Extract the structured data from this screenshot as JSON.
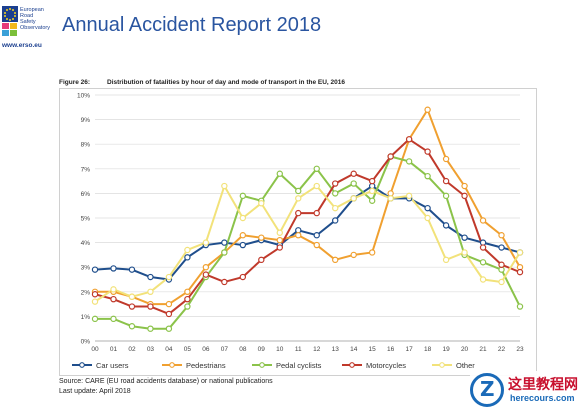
{
  "header": {
    "logo_lines": [
      "European",
      "Road",
      "Safety",
      "Observatory"
    ],
    "logo_url": "www.erso.eu",
    "title": "Annual Accident Report 2018"
  },
  "figure": {
    "label": "Figure 26:",
    "title": "Distribution of fatalities by hour of day and mode of transport in the EU, 2016"
  },
  "footer": {
    "source": "Source: CARE (EU road accidents database) or national publications",
    "last_update": "Last update: April 2018"
  },
  "watermark": {
    "logo_letter": "Z",
    "site_name": "这里教程网",
    "url": "herecours.com"
  },
  "chart_data": {
    "type": "line",
    "categories": [
      "00",
      "01",
      "02",
      "03",
      "04",
      "05",
      "06",
      "07",
      "08",
      "09",
      "10",
      "11",
      "12",
      "13",
      "14",
      "15",
      "16",
      "17",
      "18",
      "19",
      "20",
      "21",
      "22",
      "23"
    ],
    "ylim": [
      0,
      10
    ],
    "yticks": [
      "0%",
      "1%",
      "2%",
      "3%",
      "4%",
      "5%",
      "6%",
      "7%",
      "8%",
      "9%",
      "10%"
    ],
    "grid": true,
    "legend_position": "bottom",
    "series": [
      {
        "name": "Car users",
        "color": "#1f4e8c",
        "values": [
          2.9,
          2.95,
          2.9,
          2.6,
          2.5,
          3.4,
          3.9,
          4.0,
          3.9,
          4.1,
          3.9,
          4.5,
          4.3,
          4.9,
          5.8,
          6.3,
          5.8,
          5.8,
          5.4,
          4.7,
          4.2,
          4.0,
          3.8,
          3.6
        ]
      },
      {
        "name": "Pedestrians",
        "color": "#f0a030",
        "values": [
          2.0,
          2.0,
          1.8,
          1.5,
          1.5,
          2.0,
          3.0,
          3.6,
          4.3,
          4.2,
          4.1,
          4.3,
          3.9,
          3.3,
          3.5,
          3.6,
          6.0,
          8.2,
          9.4,
          7.4,
          6.3,
          4.9,
          4.3,
          3.0
        ]
      },
      {
        "name": "Pedal cyclists",
        "color": "#8bc34a",
        "values": [
          0.9,
          0.9,
          0.6,
          0.5,
          0.5,
          1.4,
          2.6,
          3.6,
          5.9,
          5.7,
          6.8,
          6.1,
          7.0,
          6.0,
          6.4,
          5.7,
          7.5,
          7.3,
          6.7,
          5.9,
          3.5,
          3.2,
          2.9,
          1.4
        ]
      },
      {
        "name": "Motorcycles",
        "color": "#c0392b",
        "values": [
          1.9,
          1.7,
          1.4,
          1.4,
          1.1,
          1.7,
          2.7,
          2.4,
          2.6,
          3.3,
          3.8,
          5.2,
          5.2,
          6.4,
          6.8,
          6.5,
          7.5,
          8.2,
          7.7,
          6.5,
          5.9,
          3.8,
          3.1,
          2.8
        ]
      },
      {
        "name": "Other",
        "color": "#f2e27a",
        "values": [
          1.6,
          2.1,
          1.8,
          2.0,
          2.6,
          3.7,
          4.0,
          6.3,
          5.0,
          5.6,
          4.4,
          5.8,
          6.3,
          5.4,
          5.8,
          6.1,
          5.8,
          5.9,
          5.0,
          3.3,
          3.6,
          2.5,
          2.4,
          3.6
        ]
      }
    ]
  }
}
